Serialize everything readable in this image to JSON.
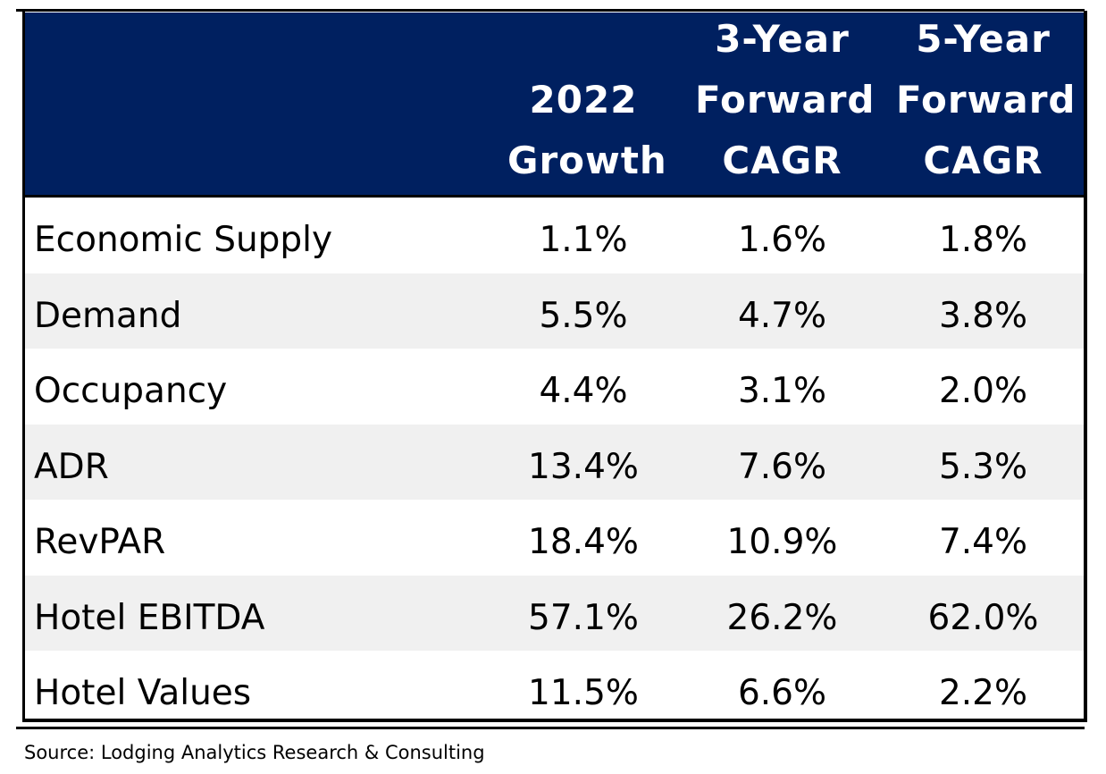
{
  "table": {
    "columns": [
      {
        "lines": [
          "2022",
          "Growth"
        ]
      },
      {
        "lines": [
          "3-Year",
          "Forward",
          "CAGR"
        ]
      },
      {
        "lines": [
          "5-Year",
          "Forward",
          "CAGR"
        ]
      }
    ],
    "rows": [
      {
        "label": "Economic Supply",
        "values": [
          "1.1%",
          "1.6%",
          "1.8%"
        ]
      },
      {
        "label": "Demand",
        "values": [
          "5.5%",
          "4.7%",
          "3.8%"
        ]
      },
      {
        "label": "Occupancy",
        "values": [
          "4.4%",
          "3.1%",
          "2.0%"
        ]
      },
      {
        "label": "ADR",
        "values": [
          "13.4%",
          "7.6%",
          "5.3%"
        ]
      },
      {
        "label": "RevPAR",
        "values": [
          "18.4%",
          "10.9%",
          "7.4%"
        ]
      },
      {
        "label": "Hotel EBITDA",
        "values": [
          "57.1%",
          "26.2%",
          "62.0%"
        ]
      },
      {
        "label": "Hotel Values",
        "values": [
          "11.5%",
          "6.6%",
          "2.2%"
        ]
      }
    ]
  },
  "source": "Source: Lodging Analytics Research & Consulting",
  "colors": {
    "header_bg": "#002060",
    "alt_row": "#f0f0f0"
  }
}
